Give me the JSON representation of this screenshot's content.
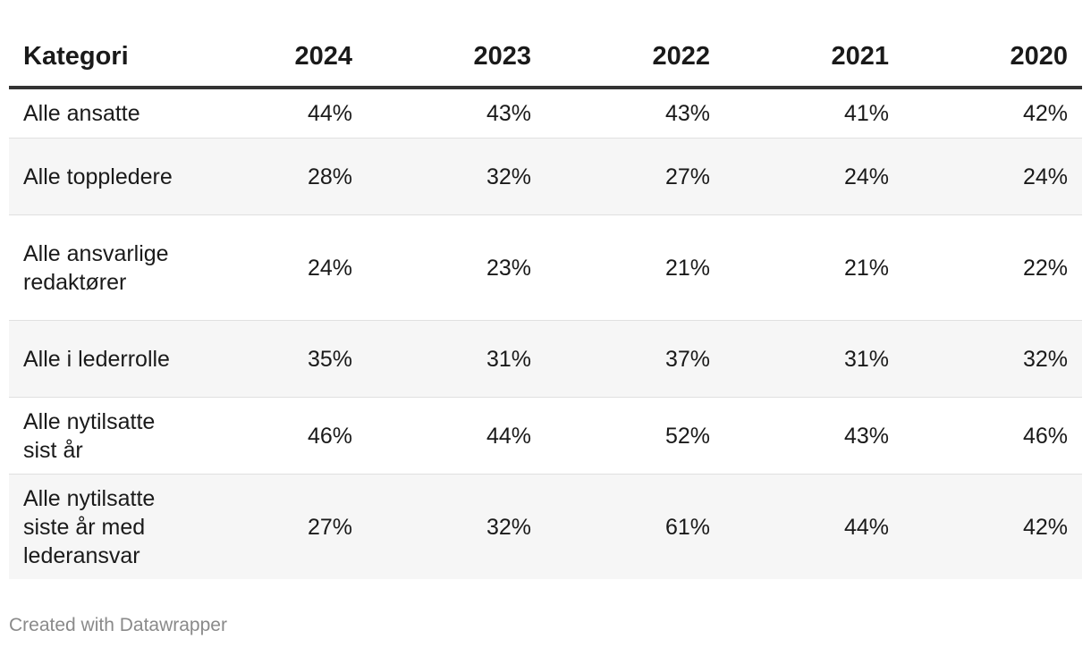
{
  "chart_data": {
    "type": "table",
    "columns": [
      "Kategori",
      "2024",
      "2023",
      "2022",
      "2021",
      "2020"
    ],
    "rows": [
      {
        "label": "Alle ansatte",
        "values": [
          "44%",
          "43%",
          "43%",
          "41%",
          "42%"
        ]
      },
      {
        "label": "Alle toppledere",
        "values": [
          "28%",
          "32%",
          "27%",
          "24%",
          "24%"
        ]
      },
      {
        "label": "Alle ansvarlige redaktører",
        "values": [
          "24%",
          "23%",
          "21%",
          "21%",
          "22%"
        ]
      },
      {
        "label": "Alle i lederrolle",
        "values": [
          "35%",
          "31%",
          "37%",
          "31%",
          "32%"
        ]
      },
      {
        "label": "Alle nytilsatte sist år",
        "values": [
          "46%",
          "44%",
          "52%",
          "43%",
          "46%"
        ]
      },
      {
        "label": "Alle nytilsatte siste år med lederansvar",
        "values": [
          "27%",
          "32%",
          "61%",
          "44%",
          "42%"
        ]
      }
    ]
  },
  "footer": {
    "credit": "Created with Datawrapper"
  }
}
